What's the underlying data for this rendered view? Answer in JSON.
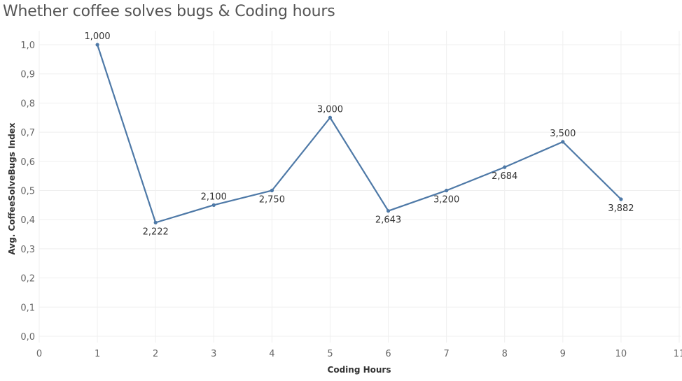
{
  "title": "Whether coffee solves bugs & Coding hours",
  "colors": {
    "line": "#4e79a7",
    "grid": "#efefef",
    "axis_text": "#666666"
  },
  "chart_data": {
    "type": "line",
    "title": "Whether coffee solves bugs & Coding hours",
    "xlabel": "Coding Hours",
    "ylabel": "Avg. CoffeeSolveBugs Index",
    "xlim": [
      0,
      11
    ],
    "ylim": [
      0,
      1.0
    ],
    "x_ticks": [
      "0",
      "1",
      "2",
      "3",
      "4",
      "5",
      "6",
      "7",
      "8",
      "9",
      "10",
      "11"
    ],
    "y_ticks": [
      "0,0",
      "0,1",
      "0,2",
      "0,3",
      "0,4",
      "0,5",
      "0,6",
      "0,7",
      "0,8",
      "0,9",
      "1,0"
    ],
    "grid": true,
    "series": [
      {
        "x": [
          1,
          2,
          3,
          4,
          5,
          6,
          7,
          8,
          9,
          10
        ],
        "y": [
          1.0,
          0.39,
          0.45,
          0.5,
          0.75,
          0.43,
          0.5,
          0.58,
          0.667,
          0.47
        ],
        "labels": [
          "1,000",
          "2,222",
          "2,100",
          "2,750",
          "3,000",
          "2,643",
          "3,200",
          "2,684",
          "3,500",
          "3,882"
        ],
        "label_side": [
          "above",
          "below",
          "above",
          "below",
          "above",
          "below",
          "below",
          "below",
          "above",
          "below"
        ]
      }
    ]
  }
}
